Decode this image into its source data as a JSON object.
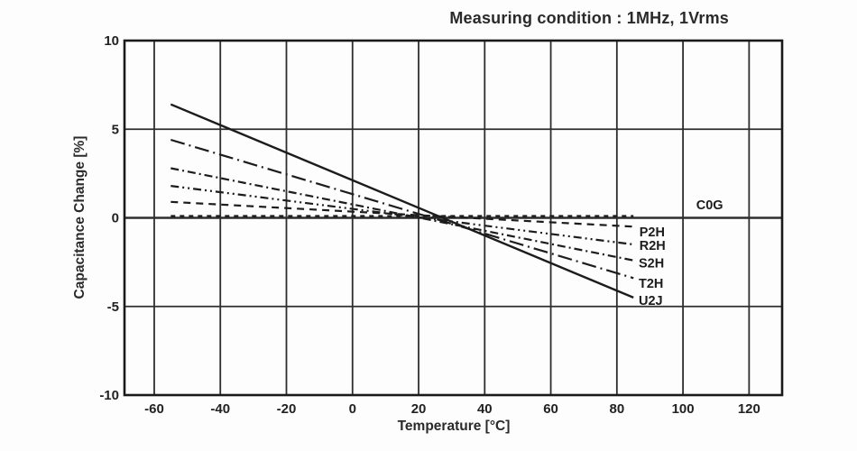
{
  "chart_data": {
    "type": "line",
    "title": "Measuring condition : 1MHz, 1Vrms",
    "xlabel": "Temperature [°C]",
    "ylabel": "Capacitance Change [%]",
    "xlim": [
      -69,
      130
    ],
    "ylim": [
      -10,
      10
    ],
    "grid": true,
    "frame_color": "#1a1a1a",
    "grid_color": "#2e2e2e",
    "line_color": "#1c1c1c",
    "xticks": {
      "values": [
        -60,
        -40,
        -20,
        0,
        20,
        40,
        60,
        80,
        100,
        120
      ],
      "labels": [
        "-60",
        "-40",
        "-20",
        "0",
        "20",
        "40",
        "60",
        "80",
        "100",
        "120"
      ]
    },
    "yticks": {
      "values": [
        10,
        5,
        0,
        -5,
        -10
      ],
      "labels": [
        "10",
        "5",
        "0",
        "-5",
        "-10"
      ]
    },
    "series": [
      {
        "name": "C0G",
        "style": "dashed-short",
        "x": [
          -55,
          85
        ],
        "y": [
          0.1,
          0.1
        ],
        "label": {
          "x": 104.0,
          "y": 0.75
        }
      },
      {
        "name": "P2H",
        "style": "dashed",
        "x": [
          -55,
          85
        ],
        "y": [
          0.9,
          -0.5
        ],
        "label": {
          "x": 86.8,
          "y": -0.8
        }
      },
      {
        "name": "R2H",
        "style": "dash-dot-dot",
        "x": [
          -55,
          85
        ],
        "y": [
          1.8,
          -1.5
        ],
        "label": {
          "x": 86.8,
          "y": -1.55
        }
      },
      {
        "name": "S2H",
        "style": "dash-dot",
        "x": [
          -55,
          85
        ],
        "y": [
          2.8,
          -2.4
        ],
        "label": {
          "x": 86.6,
          "y": -2.55
        }
      },
      {
        "name": "T2H",
        "style": "long-dash-dot",
        "x": [
          -55,
          85
        ],
        "y": [
          4.4,
          -3.4
        ],
        "label": {
          "x": 86.6,
          "y": -3.7
        }
      },
      {
        "name": "U2J",
        "style": "solid",
        "x": [
          -55,
          85
        ],
        "y": [
          6.4,
          -4.5
        ],
        "label": {
          "x": 86.6,
          "y": -4.65
        }
      }
    ]
  }
}
